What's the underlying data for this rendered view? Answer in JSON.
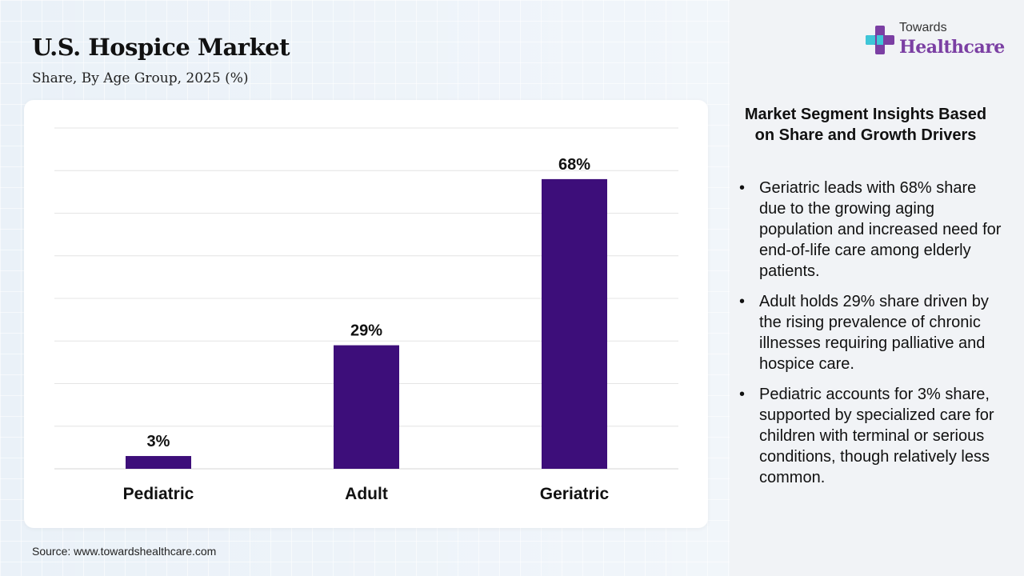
{
  "header": {
    "title": "U.S. Hospice Market",
    "subtitle": "Share, By Age Group, 2025 (%)"
  },
  "source": "Source: www.towardshealthcare.com",
  "logo": {
    "top_text": "Towards",
    "main_text": "Healthcare",
    "icon": "medical-cross-logo-icon",
    "color": "#7b3fa3"
  },
  "insights": {
    "title": "Market Segment Insights Based on Share and Growth Drivers",
    "items": [
      "Geriatric leads with 68% share due to the growing aging population and increased need for end-of-life care among elderly patients.",
      "Adult holds 29% share driven by the rising prevalence of chronic illnesses requiring palliative and hospice care.",
      "Pediatric accounts for 3% share, supported by specialized care for children with terminal or serious conditions, though relatively less common."
    ]
  },
  "chart_data": {
    "type": "bar",
    "categories": [
      "Pediatric",
      "Adult",
      "Geriatric"
    ],
    "values": [
      3,
      29,
      68
    ],
    "value_labels": [
      "3%",
      "29%",
      "68%"
    ],
    "ylim": [
      0,
      80
    ],
    "grid": true,
    "bar_color": "#3d0e7a"
  }
}
